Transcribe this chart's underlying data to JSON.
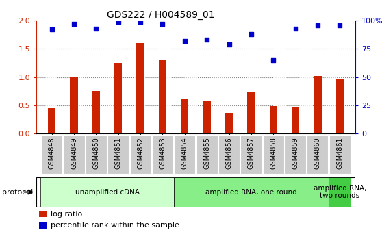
{
  "title": "GDS222 / H004589_01",
  "samples": [
    "GSM4848",
    "GSM4849",
    "GSM4850",
    "GSM4851",
    "GSM4852",
    "GSM4853",
    "GSM4854",
    "GSM4855",
    "GSM4856",
    "GSM4857",
    "GSM4858",
    "GSM4859",
    "GSM4860",
    "GSM4861"
  ],
  "log_ratio": [
    0.45,
    1.0,
    0.75,
    1.25,
    1.6,
    1.3,
    0.6,
    0.57,
    0.36,
    0.74,
    0.49,
    0.46,
    1.02,
    0.97
  ],
  "percentile_rank": [
    92,
    97,
    93,
    99,
    99,
    97,
    82,
    83,
    79,
    88,
    65,
    93,
    96,
    96
  ],
  "bar_color": "#cc2200",
  "dot_color": "#0000cc",
  "ylim_left": [
    0,
    2
  ],
  "ylim_right": [
    0,
    100
  ],
  "yticks_left": [
    0,
    0.5,
    1.0,
    1.5,
    2.0
  ],
  "yticks_right": [
    0,
    25,
    50,
    75,
    100
  ],
  "ytick_labels_right": [
    "0",
    "25",
    "50",
    "75",
    "100%"
  ],
  "protocols": [
    {
      "label": "unamplified cDNA",
      "start": 0,
      "end": 6,
      "color": "#ccffcc"
    },
    {
      "label": "amplified RNA, one round",
      "start": 6,
      "end": 13,
      "color": "#88ee88"
    },
    {
      "label": "amplified RNA,\ntwo rounds",
      "start": 13,
      "end": 14,
      "color": "#44cc44"
    }
  ],
  "legend_items": [
    {
      "color": "#cc2200",
      "label": "log ratio"
    },
    {
      "color": "#0000cc",
      "label": "percentile rank within the sample"
    }
  ],
  "protocol_label": "protocol",
  "background_color": "#ffffff",
  "tick_bg_color": "#cccccc",
  "dotted_line_color": "#888888",
  "spine_color": "#000000"
}
